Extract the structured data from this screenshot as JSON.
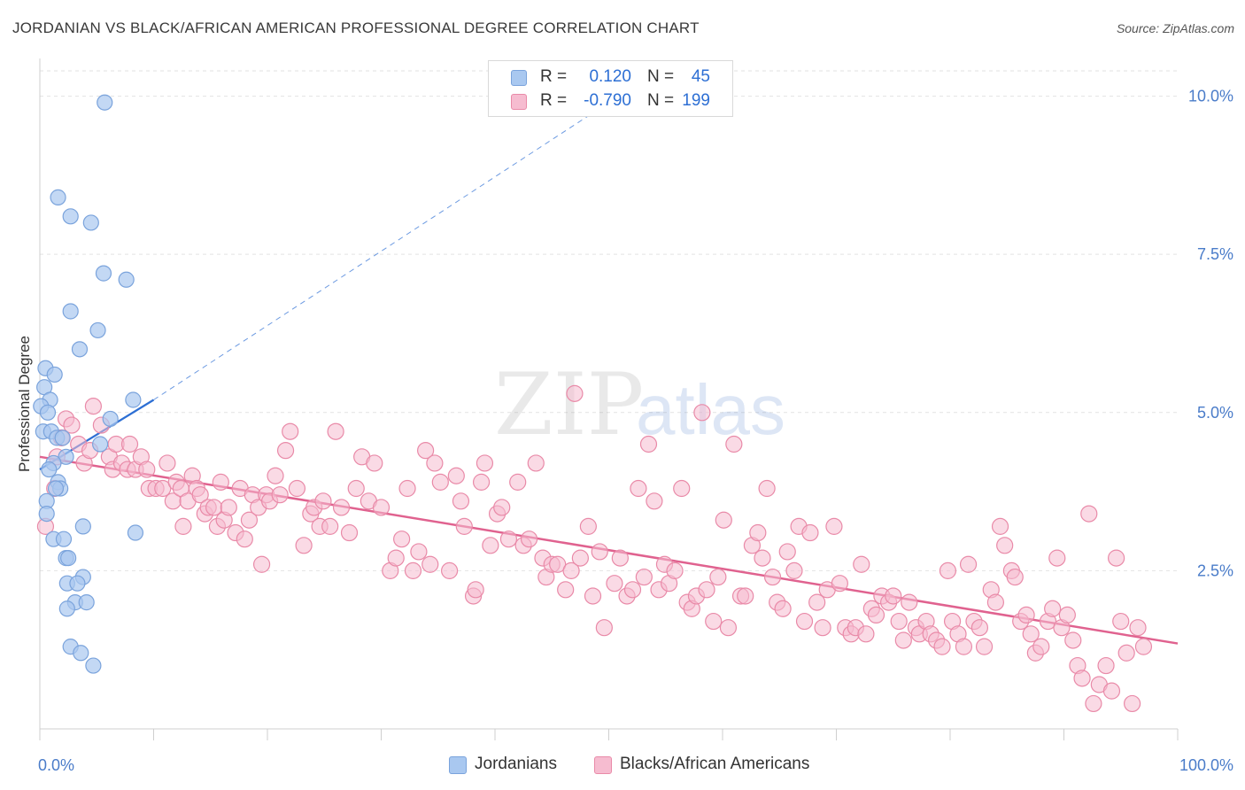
{
  "title": "JORDANIAN VS BLACK/AFRICAN AMERICAN PROFESSIONAL DEGREE CORRELATION CHART",
  "source": "Source: ZipAtlas.com",
  "watermark": {
    "zip": "ZIP",
    "atlas": "atlas"
  },
  "legend": {
    "rows": [
      {
        "r_label": "R =",
        "r_value": "0.120",
        "n_label": "N =",
        "n_value": "45",
        "color": "#a9c8f0",
        "border": "#7aa3dc"
      },
      {
        "r_label": "R =",
        "r_value": "-0.790",
        "n_label": "N =",
        "n_value": "199",
        "color": "#f6bcd0",
        "border": "#e98aa8"
      }
    ]
  },
  "bottom_legend": [
    {
      "label": "Jordanians",
      "color": "#a9c8f0",
      "border": "#7aa3dc"
    },
    {
      "label": "Blacks/African Americans",
      "color": "#f6bcd0",
      "border": "#e98aa8"
    }
  ],
  "chart_data": {
    "type": "scatter",
    "xlabel": "",
    "ylabel": "Professional Degree",
    "x_tick_labels": [
      "0.0%",
      "100.0%"
    ],
    "y_tick_labels": [
      "2.5%",
      "5.0%",
      "7.5%",
      "10.0%"
    ],
    "xlim": [
      0,
      100
    ],
    "ylim": [
      0,
      10.0
    ],
    "grid": true,
    "legend_position": "top-center",
    "colors": {
      "blue_fill": "#a9c8f0",
      "blue_stroke": "#7aa3dc",
      "blue_line": "#2d6fd4",
      "pink_fill": "#f6bcd0",
      "pink_stroke": "#e98aa8",
      "pink_line": "#e0628f",
      "tick_label": "#4a7cc9"
    },
    "series": [
      {
        "name": "Jordanians",
        "trend": {
          "x": [
            0,
            10
          ],
          "y": [
            4.1,
            5.2
          ],
          "dashed_extension_to": [
            50,
            9.9
          ]
        },
        "points": [
          [
            5.7,
            9.9
          ],
          [
            1.6,
            8.4
          ],
          [
            2.7,
            8.1
          ],
          [
            4.5,
            8.0
          ],
          [
            5.6,
            7.2
          ],
          [
            7.6,
            7.1
          ],
          [
            2.7,
            6.6
          ],
          [
            5.1,
            6.3
          ],
          [
            3.5,
            6.0
          ],
          [
            0.5,
            5.7
          ],
          [
            1.3,
            5.6
          ],
          [
            0.4,
            5.4
          ],
          [
            0.9,
            5.2
          ],
          [
            8.2,
            5.2
          ],
          [
            0.1,
            5.1
          ],
          [
            0.7,
            5.0
          ],
          [
            6.2,
            4.9
          ],
          [
            0.3,
            4.7
          ],
          [
            1.0,
            4.7
          ],
          [
            1.5,
            4.6
          ],
          [
            2.0,
            4.6
          ],
          [
            5.3,
            4.5
          ],
          [
            2.3,
            4.3
          ],
          [
            1.2,
            4.2
          ],
          [
            0.8,
            4.1
          ],
          [
            1.6,
            3.9
          ],
          [
            1.8,
            3.8
          ],
          [
            0.6,
            3.6
          ],
          [
            0.6,
            3.4
          ],
          [
            3.8,
            3.2
          ],
          [
            8.4,
            3.1
          ],
          [
            1.2,
            3.0
          ],
          [
            2.1,
            3.0
          ],
          [
            2.3,
            2.7
          ],
          [
            2.5,
            2.7
          ],
          [
            3.8,
            2.4
          ],
          [
            2.4,
            2.3
          ],
          [
            3.3,
            2.3
          ],
          [
            3.1,
            2.0
          ],
          [
            4.1,
            2.0
          ],
          [
            2.4,
            1.9
          ],
          [
            2.7,
            1.3
          ],
          [
            3.6,
            1.2
          ],
          [
            4.7,
            1.0
          ],
          [
            1.4,
            3.8
          ]
        ]
      },
      {
        "name": "Blacks/African Americans",
        "trend": {
          "x": [
            0,
            100
          ],
          "y": [
            4.3,
            1.35
          ]
        },
        "points": [
          [
            0.5,
            3.2
          ],
          [
            1.3,
            3.8
          ],
          [
            1.5,
            4.3
          ],
          [
            1.9,
            4.6
          ],
          [
            2.3,
            4.9
          ],
          [
            2.8,
            4.8
          ],
          [
            3.4,
            4.5
          ],
          [
            3.9,
            4.2
          ],
          [
            4.4,
            4.4
          ],
          [
            4.7,
            5.1
          ],
          [
            5.4,
            4.8
          ],
          [
            6.1,
            4.3
          ],
          [
            6.4,
            4.1
          ],
          [
            6.7,
            4.5
          ],
          [
            7.2,
            4.2
          ],
          [
            7.7,
            4.1
          ],
          [
            7.9,
            4.5
          ],
          [
            8.4,
            4.1
          ],
          [
            8.9,
            4.3
          ],
          [
            9.4,
            4.1
          ],
          [
            9.6,
            3.8
          ],
          [
            10.2,
            3.8
          ],
          [
            10.8,
            3.8
          ],
          [
            11.2,
            4.2
          ],
          [
            11.7,
            3.6
          ],
          [
            12.0,
            3.9
          ],
          [
            12.4,
            3.8
          ],
          [
            12.6,
            3.2
          ],
          [
            13.0,
            3.6
          ],
          [
            13.4,
            4.0
          ],
          [
            13.8,
            3.8
          ],
          [
            14.1,
            3.7
          ],
          [
            14.5,
            3.4
          ],
          [
            14.8,
            3.5
          ],
          [
            15.3,
            3.5
          ],
          [
            15.6,
            3.2
          ],
          [
            15.9,
            3.9
          ],
          [
            16.2,
            3.3
          ],
          [
            16.6,
            3.5
          ],
          [
            17.2,
            3.1
          ],
          [
            17.6,
            3.8
          ],
          [
            18.0,
            3.0
          ],
          [
            18.4,
            3.3
          ],
          [
            18.7,
            3.7
          ],
          [
            19.2,
            3.5
          ],
          [
            19.5,
            2.6
          ],
          [
            19.9,
            3.7
          ],
          [
            20.2,
            3.6
          ],
          [
            20.7,
            4.0
          ],
          [
            21.1,
            3.7
          ],
          [
            21.6,
            4.4
          ],
          [
            22.0,
            4.7
          ],
          [
            22.6,
            3.8
          ],
          [
            23.2,
            2.9
          ],
          [
            23.8,
            3.4
          ],
          [
            24.1,
            3.5
          ],
          [
            24.6,
            3.2
          ],
          [
            24.9,
            3.6
          ],
          [
            25.5,
            3.2
          ],
          [
            26.0,
            4.7
          ],
          [
            26.5,
            3.5
          ],
          [
            27.2,
            3.1
          ],
          [
            27.8,
            3.8
          ],
          [
            28.3,
            4.3
          ],
          [
            28.9,
            3.6
          ],
          [
            29.4,
            4.2
          ],
          [
            30.0,
            3.5
          ],
          [
            30.8,
            2.5
          ],
          [
            31.3,
            2.7
          ],
          [
            31.8,
            3.0
          ],
          [
            32.3,
            3.8
          ],
          [
            32.8,
            2.5
          ],
          [
            33.3,
            2.8
          ],
          [
            33.9,
            4.4
          ],
          [
            34.3,
            2.6
          ],
          [
            34.7,
            4.2
          ],
          [
            35.2,
            3.9
          ],
          [
            36.0,
            2.5
          ],
          [
            36.6,
            4.0
          ],
          [
            37.0,
            3.6
          ],
          [
            37.3,
            3.2
          ],
          [
            38.1,
            2.1
          ],
          [
            38.3,
            2.2
          ],
          [
            38.8,
            3.9
          ],
          [
            39.1,
            4.2
          ],
          [
            39.6,
            2.9
          ],
          [
            40.2,
            3.4
          ],
          [
            40.6,
            3.5
          ],
          [
            41.2,
            3.0
          ],
          [
            42.0,
            3.9
          ],
          [
            42.5,
            2.9
          ],
          [
            43.0,
            3.0
          ],
          [
            43.6,
            4.2
          ],
          [
            44.2,
            2.7
          ],
          [
            44.5,
            2.4
          ],
          [
            45.0,
            2.6
          ],
          [
            45.5,
            2.6
          ],
          [
            46.2,
            2.2
          ],
          [
            46.7,
            2.5
          ],
          [
            47.0,
            5.3
          ],
          [
            47.5,
            2.7
          ],
          [
            48.2,
            3.2
          ],
          [
            48.6,
            2.1
          ],
          [
            49.2,
            2.8
          ],
          [
            49.6,
            1.6
          ],
          [
            50.5,
            2.3
          ],
          [
            51.0,
            2.7
          ],
          [
            51.6,
            2.1
          ],
          [
            52.1,
            2.2
          ],
          [
            52.6,
            3.8
          ],
          [
            53.1,
            2.4
          ],
          [
            53.5,
            4.5
          ],
          [
            54.0,
            3.6
          ],
          [
            54.4,
            2.2
          ],
          [
            54.9,
            2.6
          ],
          [
            55.3,
            2.3
          ],
          [
            55.8,
            2.5
          ],
          [
            56.4,
            3.8
          ],
          [
            56.9,
            2.0
          ],
          [
            57.3,
            1.9
          ],
          [
            57.7,
            2.1
          ],
          [
            58.2,
            5.0
          ],
          [
            58.6,
            2.2
          ],
          [
            59.2,
            1.7
          ],
          [
            59.6,
            2.4
          ],
          [
            60.1,
            3.3
          ],
          [
            60.5,
            1.6
          ],
          [
            61.0,
            4.5
          ],
          [
            61.6,
            2.1
          ],
          [
            62.0,
            2.1
          ],
          [
            62.6,
            2.9
          ],
          [
            63.1,
            3.1
          ],
          [
            63.5,
            2.7
          ],
          [
            63.9,
            3.8
          ],
          [
            64.4,
            2.4
          ],
          [
            64.8,
            2.0
          ],
          [
            65.3,
            1.9
          ],
          [
            65.7,
            2.8
          ],
          [
            66.3,
            2.5
          ],
          [
            66.7,
            3.2
          ],
          [
            67.2,
            1.7
          ],
          [
            67.7,
            3.1
          ],
          [
            68.3,
            2.0
          ],
          [
            68.8,
            1.6
          ],
          [
            69.2,
            2.2
          ],
          [
            69.8,
            3.2
          ],
          [
            70.3,
            2.3
          ],
          [
            70.8,
            1.6
          ],
          [
            71.3,
            1.5
          ],
          [
            71.7,
            1.6
          ],
          [
            72.2,
            2.6
          ],
          [
            72.6,
            1.5
          ],
          [
            73.1,
            1.9
          ],
          [
            73.5,
            1.8
          ],
          [
            74.0,
            2.1
          ],
          [
            74.6,
            2.0
          ],
          [
            75.0,
            2.1
          ],
          [
            75.5,
            1.7
          ],
          [
            75.9,
            1.4
          ],
          [
            76.4,
            2.0
          ],
          [
            77.0,
            1.6
          ],
          [
            77.3,
            1.5
          ],
          [
            77.9,
            1.7
          ],
          [
            78.3,
            1.5
          ],
          [
            78.8,
            1.4
          ],
          [
            79.3,
            1.3
          ],
          [
            79.8,
            2.5
          ],
          [
            80.2,
            1.7
          ],
          [
            80.7,
            1.5
          ],
          [
            81.2,
            1.3
          ],
          [
            81.6,
            2.6
          ],
          [
            82.1,
            1.7
          ],
          [
            82.6,
            1.6
          ],
          [
            83.0,
            1.3
          ],
          [
            83.6,
            2.2
          ],
          [
            84.0,
            2.0
          ],
          [
            84.4,
            3.2
          ],
          [
            84.8,
            2.9
          ],
          [
            85.4,
            2.5
          ],
          [
            85.7,
            2.4
          ],
          [
            86.2,
            1.7
          ],
          [
            86.7,
            1.8
          ],
          [
            87.1,
            1.5
          ],
          [
            87.5,
            1.2
          ],
          [
            88.0,
            1.3
          ],
          [
            88.6,
            1.7
          ],
          [
            89.0,
            1.9
          ],
          [
            89.4,
            2.7
          ],
          [
            89.8,
            1.6
          ],
          [
            90.3,
            1.8
          ],
          [
            90.8,
            1.4
          ],
          [
            91.2,
            1.0
          ],
          [
            91.6,
            0.8
          ],
          [
            92.2,
            3.4
          ],
          [
            92.6,
            0.4
          ],
          [
            93.1,
            0.7
          ],
          [
            93.7,
            1.0
          ],
          [
            94.2,
            0.6
          ],
          [
            94.6,
            2.7
          ],
          [
            95.0,
            1.7
          ],
          [
            95.5,
            1.2
          ],
          [
            96.0,
            0.4
          ],
          [
            96.5,
            1.6
          ],
          [
            97.0,
            1.3
          ]
        ]
      }
    ]
  }
}
